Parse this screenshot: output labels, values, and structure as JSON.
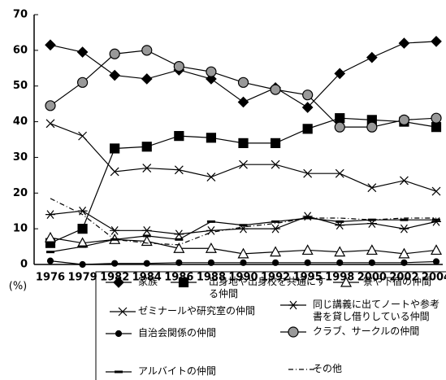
{
  "chart_data": {
    "type": "line",
    "y_label": "(%)",
    "categories": [
      "1976",
      "1979",
      "1982",
      "1984",
      "1986",
      "1988",
      "1990",
      "1992",
      "1995",
      "1998",
      "2000",
      "2002",
      "2004"
    ],
    "ylim": [
      0,
      70
    ],
    "yticks": [
      0,
      10,
      20,
      30,
      40,
      50,
      60,
      70
    ],
    "series": [
      {
        "name": "家族",
        "color": "#000000",
        "marker": "diamond",
        "values": [
          61.5,
          59.5,
          53,
          52,
          54.5,
          52,
          45.5,
          49.5,
          44,
          53.5,
          58,
          62,
          62.5
        ]
      },
      {
        "name": "出身地や出身校を共通にする仲間",
        "color": "#000000",
        "marker": "square",
        "values": [
          6,
          10,
          32.5,
          33,
          36,
          35.5,
          34,
          34,
          38,
          41,
          40.5,
          40,
          38.5
        ]
      },
      {
        "name": "寮や下宿の仲間",
        "color": "#000000",
        "marker": "triangle",
        "values": [
          7.5,
          6,
          7,
          6.5,
          4.5,
          4.5,
          3,
          3.5,
          4,
          3.5,
          4,
          3,
          4
        ]
      },
      {
        "name": "ゼミナールや研究室の仲間",
        "color": "#000000",
        "marker": "x",
        "values": [
          39.5,
          36,
          26,
          27,
          26.5,
          24.5,
          28,
          28,
          25.5,
          25.5,
          21.5,
          23.5,
          20.5
        ]
      },
      {
        "name": "同じ講義に出てノートや参考書を貸し借りしている仲間",
        "color": "#000000",
        "marker": "asterisk",
        "values": [
          14,
          15,
          9.5,
          9.5,
          8.5,
          9.5,
          10,
          10,
          13.5,
          11,
          11.5,
          10,
          12
        ]
      },
      {
        "name": "自治会関係の仲間",
        "color": "#000000",
        "marker": "circle",
        "values": [
          1,
          0,
          0.3,
          0.3,
          0.5,
          0.5,
          0.5,
          0.5,
          0.5,
          0.5,
          0.5,
          0.5,
          0.8
        ]
      },
      {
        "name": "クラブ、サークルの仲間",
        "color": "#999999",
        "marker": "ringed",
        "values": [
          44.5,
          51,
          59,
          60,
          55.5,
          54,
          51,
          49,
          47.5,
          38.5,
          38.5,
          40.5,
          41
        ]
      },
      {
        "name": "アルバイトの仲間",
        "color": "#000000",
        "marker": "dash",
        "values": [
          3.5,
          5,
          7,
          8,
          7,
          12,
          11,
          12,
          13,
          12,
          12.5,
          12.5,
          12.5
        ]
      },
      {
        "name": "その他",
        "color": "#000000",
        "marker": "none",
        "dash": "6 3 1 3",
        "values": [
          18.5,
          14,
          7,
          6,
          5.5,
          9,
          10.5,
          11.5,
          13,
          13,
          12.5,
          13,
          13
        ]
      }
    ]
  }
}
